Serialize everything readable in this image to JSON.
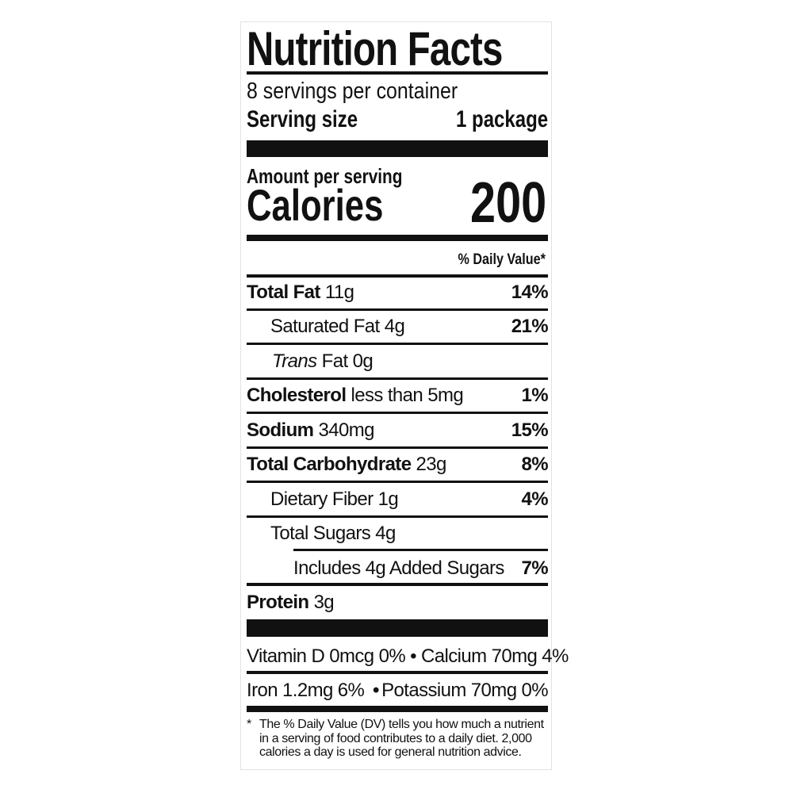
{
  "title": "Nutrition Facts",
  "servings_per_container": "8 servings per container",
  "serving_size_label": "Serving size",
  "serving_size_value": "1 package",
  "amount_per_serving": "Amount per serving",
  "calories_label": "Calories",
  "calories_value": "200",
  "daily_value_header": "% Daily Value*",
  "nutrients": [
    {
      "name": "Total Fat",
      "amount": "11g",
      "dv": "14%"
    },
    {
      "name": "Saturated Fat",
      "amount": "4g",
      "dv": "21%"
    },
    {
      "name_italic": "Trans",
      "name": "Fat",
      "amount": "0g",
      "dv": ""
    },
    {
      "name": "Cholesterol",
      "amount": "less than 5mg",
      "dv": "1%"
    },
    {
      "name": "Sodium",
      "amount": "340mg",
      "dv": "15%"
    },
    {
      "name": "Total Carbohydrate",
      "amount": "23g",
      "dv": "8%"
    },
    {
      "name": "Dietary Fiber",
      "amount": "1g",
      "dv": "4%"
    },
    {
      "name": "Total Sugars",
      "amount": "4g",
      "dv": ""
    },
    {
      "name": "Includes 4g Added Sugars",
      "amount": "",
      "dv": "7%"
    },
    {
      "name": "Protein",
      "amount": "3g",
      "dv": ""
    }
  ],
  "micronutrients": {
    "line1": "Vitamin D 0mcg 0% • Calcium 70mg 4%",
    "line2_left": "Iron 1.2mg 6%",
    "line2_sep": "•",
    "line2_right": "Potassium 70mg 0%"
  },
  "footnote_star": "*",
  "footnote": "The % Daily Value (DV) tells you how much a nutrient in a serving of food contributes to a daily diet. 2,000 calories a day is used for general nutrition advice."
}
